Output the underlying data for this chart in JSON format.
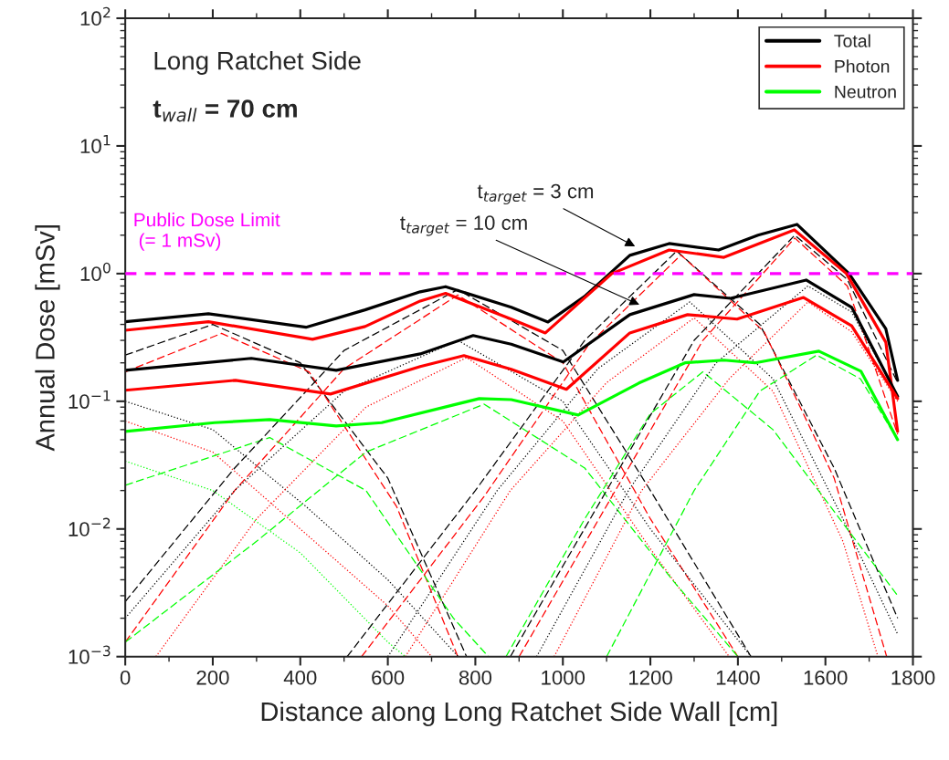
{
  "chart_data": {
    "type": "line",
    "xlabel": "Distance along Long Ratchet Side Wall [cm]",
    "ylabel": "Annual Dose [mSv]",
    "log": "y",
    "legend": "top right",
    "grid": false,
    "xlim": [
      0,
      1800
    ],
    "xticks": [
      0,
      200,
      400,
      600,
      800,
      1000,
      1200,
      1400,
      1600,
      1800
    ],
    "ylim": [
      0.001,
      100
    ],
    "yticks": [
      {
        "value": 0.001,
        "label": "10$^{−3}$"
      },
      {
        "value": 0.01,
        "label": "10$^{−2}$"
      },
      {
        "value": 0.1,
        "label": "10$^{−1}$"
      },
      {
        "value": 1,
        "label": "10$^{0}$"
      },
      {
        "value": 10,
        "label": "10$^{1}$"
      },
      {
        "value": 100,
        "label": "10$^{2}$"
      }
    ],
    "ref_lines": [
      {
        "axis": "y",
        "value": 1,
        "label": "Public Dose Limit\n (= 1 mSv)",
        "color": "#ff00ff",
        "line_style": "dashed"
      }
    ],
    "annotations": [
      "Long Ratchet Side",
      "t$_{wall}$ = 70 cm",
      {
        "text": "t$_{target}$ = 3 cm",
        "x": 1170,
        "y": 1.6
      },
      {
        "text": "t$_{target}$ = 10 cm",
        "x": 1180,
        "y": 0.56
      }
    ],
    "series": [
      {
        "line_style": "dashed",
        "color": "#000000",
        "x": [
          0,
          200,
          400,
          600,
          780
        ],
        "values": [
          0.23,
          0.4,
          0.2,
          0.025,
          0.001
        ]
      },
      {
        "line_style": "dashed",
        "color": "#ff0000",
        "x": [
          0,
          220,
          420,
          620,
          760
        ],
        "values": [
          0.17,
          0.34,
          0.17,
          0.015,
          0.001
        ]
      },
      {
        "line_style": "dotted",
        "color": "#000000",
        "x": [
          0,
          200,
          413,
          600,
          761
        ],
        "values": [
          0.1,
          0.06,
          0.015,
          0.004,
          0.001
        ]
      },
      {
        "line_style": "dotted",
        "color": "#ff0000",
        "x": [
          0,
          200,
          400,
          600,
          700
        ],
        "values": [
          0.07,
          0.04,
          0.01,
          0.0025,
          0.001
        ]
      },
      {
        "line_style": "dashed",
        "color": "#00ff00",
        "x": [
          0,
          330,
          550,
          750,
          830
        ],
        "values": [
          0.022,
          0.052,
          0.02,
          0.002,
          0.001
        ]
      },
      {
        "line_style": "dotted",
        "color": "#00ff00",
        "x": [
          0,
          200,
          400,
          600,
          640
        ],
        "values": [
          0.034,
          0.02,
          0.0065,
          0.0013,
          0.001
        ]
      },
      {
        "line_style": "dashed",
        "color": "#000000",
        "x": [
          0,
          250,
          500,
          760,
          1000,
          1200,
          1430
        ],
        "values": [
          0.0027,
          0.03,
          0.25,
          0.75,
          0.25,
          0.02,
          0.001
        ]
      },
      {
        "line_style": "dashed",
        "color": "#ff0000",
        "x": [
          0,
          250,
          500,
          760,
          1000,
          1200,
          1400
        ],
        "values": [
          0.0013,
          0.02,
          0.18,
          0.68,
          0.2,
          0.012,
          0.001
        ]
      },
      {
        "line_style": "dotted",
        "color": "#000000",
        "x": [
          0,
          250,
          500,
          760,
          1000,
          1200,
          1430
        ],
        "values": [
          0.002,
          0.02,
          0.12,
          0.3,
          0.1,
          0.01,
          0.001
        ]
      },
      {
        "line_style": "dotted",
        "color": "#ff0000",
        "x": [
          70,
          300,
          550,
          780,
          1000,
          1200,
          1380
        ],
        "values": [
          0.001,
          0.012,
          0.09,
          0.22,
          0.07,
          0.007,
          0.001
        ]
      },
      {
        "line_style": "dashed",
        "color": "#00ff00",
        "x": [
          0,
          300,
          550,
          820,
          1050,
          1250,
          1400
        ],
        "values": [
          0.0013,
          0.008,
          0.04,
          0.095,
          0.03,
          0.004,
          0.001
        ]
      },
      {
        "line_style": "dashed",
        "color": "#000000",
        "x": [
          507,
          800,
          1050,
          1260,
          1450,
          1620,
          1765
        ],
        "values": [
          0.001,
          0.02,
          0.3,
          1.5,
          0.4,
          0.03,
          0.002
        ]
      },
      {
        "line_style": "dashed",
        "color": "#ff0000",
        "x": [
          540,
          820,
          1060,
          1270,
          1460,
          1620,
          1740
        ],
        "values": [
          0.001,
          0.018,
          0.28,
          1.4,
          0.35,
          0.025,
          0.001
        ]
      },
      {
        "line_style": "dotted",
        "color": "#000000",
        "x": [
          600,
          850,
          1080,
          1290,
          1480,
          1640,
          1765
        ],
        "values": [
          0.001,
          0.02,
          0.18,
          0.6,
          0.15,
          0.012,
          0.0015
        ]
      },
      {
        "line_style": "dotted",
        "color": "#ff0000",
        "x": [
          640,
          880,
          1100,
          1300,
          1480,
          1640,
          1720
        ],
        "values": [
          0.001,
          0.02,
          0.14,
          0.45,
          0.12,
          0.008,
          0.001
        ]
      },
      {
        "line_style": "dashed",
        "color": "#00ff00",
        "x": [
          870,
          1050,
          1200,
          1320,
          1480,
          1650,
          1765
        ],
        "values": [
          0.001,
          0.012,
          0.08,
          0.17,
          0.06,
          0.01,
          0.003
        ]
      },
      {
        "line_style": "dashed",
        "color": "#000000",
        "x": [
          880,
          1100,
          1300,
          1530,
          1650,
          1765
        ],
        "values": [
          0.001,
          0.02,
          0.3,
          2.0,
          0.9,
          0.14
        ]
      },
      {
        "line_style": "dashed",
        "color": "#ff0000",
        "x": [
          900,
          1120,
          1320,
          1530,
          1650,
          1765
        ],
        "values": [
          0.001,
          0.02,
          0.3,
          1.9,
          0.8,
          0.055
        ]
      },
      {
        "line_style": "dotted",
        "color": "#000000",
        "x": [
          940,
          1150,
          1350,
          1560,
          1660,
          1765
        ],
        "values": [
          0.001,
          0.02,
          0.2,
          0.8,
          0.5,
          0.11
        ]
      },
      {
        "line_style": "dotted",
        "color": "#ff0000",
        "x": [
          980,
          1180,
          1380,
          1560,
          1660,
          1765
        ],
        "values": [
          0.001,
          0.02,
          0.15,
          0.6,
          0.35,
          0.1
        ]
      },
      {
        "line_style": "dashed",
        "color": "#00ff00",
        "x": [
          1100,
          1300,
          1450,
          1580,
          1680,
          1765
        ],
        "values": [
          0.001,
          0.02,
          0.12,
          0.23,
          0.15,
          0.05
        ]
      },
      {
        "name": "Total",
        "line_style": "solid",
        "color": "#000000",
        "x": [
          0,
          190,
          413,
          548,
          674,
          732,
          882,
          966,
          1049,
          1153,
          1243,
          1356,
          1446,
          1535,
          1654,
          1738,
          1765
        ],
        "values": [
          0.42,
          0.485,
          0.38,
          0.52,
          0.72,
          0.79,
          0.545,
          0.418,
          0.66,
          1.39,
          1.72,
          1.53,
          2.0,
          2.43,
          1.0,
          0.37,
          0.146
        ]
      },
      {
        "name": "Photon",
        "line_style": "solid",
        "color": "#ff0000",
        "x": [
          0,
          190,
          428,
          548,
          674,
          732,
          882,
          960,
          1112,
          1243,
          1368,
          1529,
          1648,
          1738,
          1765
        ],
        "values": [
          0.36,
          0.42,
          0.306,
          0.385,
          0.61,
          0.7,
          0.44,
          0.343,
          1.0,
          1.53,
          1.34,
          2.2,
          1.0,
          0.29,
          0.058
        ]
      },
      {
        "line_style": "solid",
        "color": "#000000",
        "x": [
          0,
          288,
          482,
          674,
          795,
          882,
          1001,
          1153,
          1300,
          1383,
          1556,
          1660,
          1765
        ],
        "values": [
          0.175,
          0.217,
          0.175,
          0.235,
          0.327,
          0.28,
          0.203,
          0.477,
          0.685,
          0.64,
          0.89,
          0.545,
          0.109
        ]
      },
      {
        "line_style": "solid",
        "color": "#ff0000",
        "x": [
          0,
          252,
          469,
          674,
          774,
          882,
          1008,
          1153,
          1285,
          1398,
          1550,
          1660,
          1765
        ],
        "values": [
          0.122,
          0.146,
          0.114,
          0.187,
          0.228,
          0.178,
          0.124,
          0.343,
          0.477,
          0.44,
          0.65,
          0.39,
          0.105
        ]
      },
      {
        "name": "Neutron",
        "line_style": "solid",
        "color": "#00ff00",
        "x": [
          0,
          204,
          330,
          482,
          586,
          809,
          882,
          1035,
          1174,
          1279,
          1368,
          1439,
          1585,
          1681,
          1765
        ],
        "values": [
          0.058,
          0.068,
          0.072,
          0.064,
          0.068,
          0.105,
          0.103,
          0.078,
          0.139,
          0.2,
          0.21,
          0.2,
          0.247,
          0.172,
          0.05
        ]
      }
    ]
  }
}
